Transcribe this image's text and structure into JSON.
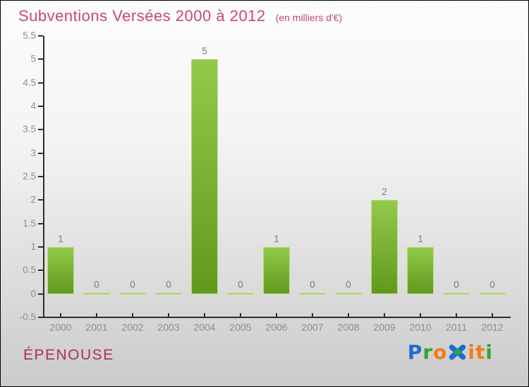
{
  "title": "Subventions Versées 2000 à 2012",
  "subtitle": "(en milliers d'€)",
  "colors": {
    "title": "#c7496d",
    "footer_name": "#b02d62",
    "axis": "#2e2e2e",
    "tick_label": "#8d8d8d",
    "value_label": "#7b7b7b"
  },
  "chart_data": {
    "type": "bar",
    "title": "Subventions Versées 2000 à 2012",
    "subtitle": "(en milliers d'€)",
    "categories": [
      "2000",
      "2001",
      "2002",
      "2003",
      "2004",
      "2005",
      "2006",
      "2007",
      "2008",
      "2009",
      "2010",
      "2011",
      "2012"
    ],
    "values": [
      1,
      0,
      0,
      0,
      5,
      0,
      1,
      0,
      0,
      2,
      1,
      0,
      0
    ],
    "xlabel": "",
    "ylabel": "",
    "ylim": [
      -0.5,
      5.5
    ],
    "ytick_step": 0.5,
    "yticks": [
      5.5,
      5,
      4.5,
      4,
      3.5,
      3,
      2.5,
      2,
      1.5,
      1,
      0.5,
      0,
      -0.5
    ],
    "grid": false,
    "legend": false,
    "value_labels_shown": true,
    "bar_color_top": "#94ca4b",
    "bar_color_bottom": "#61991d",
    "bar_border": "#b9dd85",
    "zero_bar_color_top": "#a9d765",
    "zero_bar_color_bottom": "#7fb43a",
    "zero_bar_border": "#c6e494"
  },
  "footer": {
    "name": "ÉPENOUSE",
    "logo": {
      "text": "Proxiti",
      "letters": [
        {
          "char": "P",
          "color": "#206cd4"
        },
        {
          "char": "r",
          "color": "#33a433"
        },
        {
          "char": "o",
          "color": "#f57c14"
        },
        {
          "char": "x",
          "color": "#206cd4",
          "accent": "#33a433"
        },
        {
          "char": "i",
          "color": "#f57c14"
        },
        {
          "char": "t",
          "color": "#f57c14"
        },
        {
          "char": "i",
          "color": "#33a433"
        }
      ]
    }
  }
}
